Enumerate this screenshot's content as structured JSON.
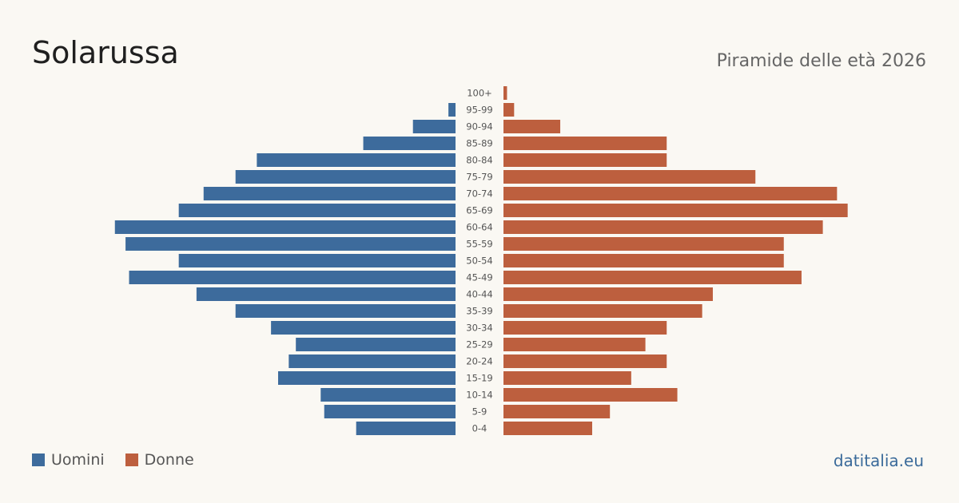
{
  "header": {
    "title": "Solarussa",
    "subtitle": "Piramide delle età 2026"
  },
  "legend": {
    "men_label": "Uomini",
    "women_label": "Donne"
  },
  "footer": {
    "source": "datitalia.eu"
  },
  "colors": {
    "men": "#3d6b9c",
    "women": "#bd5f3e"
  },
  "chart_data": {
    "type": "bar",
    "orientation": "horizontal-pyramid",
    "title": "Solarussa",
    "subtitle": "Piramide delle età 2026",
    "categories": [
      "100+",
      "95-99",
      "90-94",
      "85-89",
      "80-84",
      "75-79",
      "70-74",
      "65-69",
      "60-64",
      "55-59",
      "50-54",
      "45-49",
      "40-44",
      "35-39",
      "30-34",
      "25-29",
      "20-24",
      "15-19",
      "10-14",
      "5-9",
      "0-4"
    ],
    "series": [
      {
        "name": "Uomini",
        "values": [
          0,
          2,
          12,
          26,
          56,
          62,
          71,
          78,
          96,
          93,
          78,
          92,
          73,
          62,
          52,
          45,
          47,
          50,
          38,
          37,
          28
        ]
      },
      {
        "name": "Donne",
        "values": [
          1,
          3,
          16,
          46,
          46,
          71,
          94,
          97,
          90,
          79,
          79,
          84,
          59,
          56,
          46,
          40,
          46,
          36,
          49,
          30,
          25
        ]
      }
    ],
    "xlim": [
      0,
      100
    ],
    "grid": false,
    "legend_position": "bottom-left"
  }
}
